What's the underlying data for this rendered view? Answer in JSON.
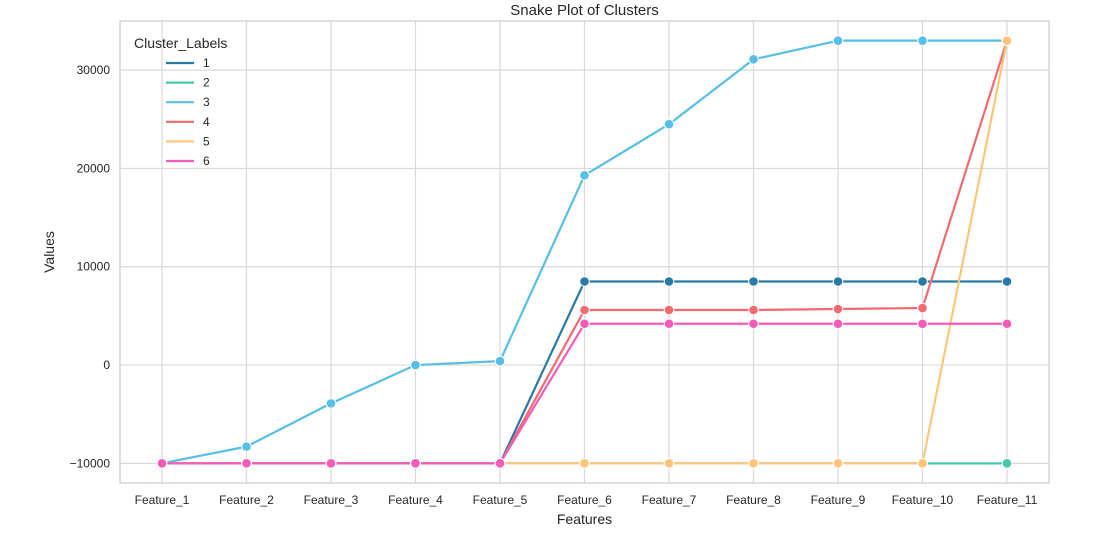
{
  "chart_data": {
    "type": "line",
    "title": "Snake Plot of Clusters",
    "xlabel": "Features",
    "ylabel": "Values",
    "categories": [
      "Feature_1",
      "Feature_2",
      "Feature_3",
      "Feature_4",
      "Feature_5",
      "Feature_6",
      "Feature_7",
      "Feature_8",
      "Feature_9",
      "Feature_10",
      "Feature_11"
    ],
    "ylim": [
      -12000,
      35000
    ],
    "yticks": [
      -10000,
      0,
      10000,
      20000,
      30000
    ],
    "ytick_labels": [
      "−10000",
      "0",
      "10000",
      "20000",
      "30000"
    ],
    "grid": true,
    "legend": {
      "title": "Cluster_Labels",
      "position": "top-left"
    },
    "series": [
      {
        "name": "1",
        "color": "#2a7aa6",
        "values": [
          -10000,
          -10000,
          -10000,
          -10000,
          -10000,
          8500,
          8500,
          8500,
          8500,
          8500,
          8500
        ]
      },
      {
        "name": "2",
        "color": "#45c9a8",
        "values": [
          -10000,
          -10000,
          -10000,
          -10000,
          -10000,
          -10000,
          -10000,
          -10000,
          -10000,
          -10000,
          -10000
        ]
      },
      {
        "name": "3",
        "color": "#56bfe5",
        "values": [
          -10000,
          -8300,
          -3900,
          0,
          400,
          19300,
          24500,
          31100,
          33000,
          33000,
          33000
        ]
      },
      {
        "name": "4",
        "color": "#f06a6e",
        "values": [
          -10000,
          -10000,
          -10000,
          -10000,
          -10000,
          5600,
          5600,
          5600,
          5700,
          5800,
          33000
        ]
      },
      {
        "name": "5",
        "color": "#fec47a",
        "values": [
          -10000,
          -10000,
          -10000,
          -10000,
          -10000,
          -10000,
          -10000,
          -10000,
          -10000,
          -10000,
          33000
        ]
      },
      {
        "name": "6",
        "color": "#f55bb8",
        "values": [
          -10000,
          -10000,
          -10000,
          -10000,
          -10000,
          4200,
          4200,
          4200,
          4200,
          4200,
          4200
        ]
      }
    ]
  }
}
